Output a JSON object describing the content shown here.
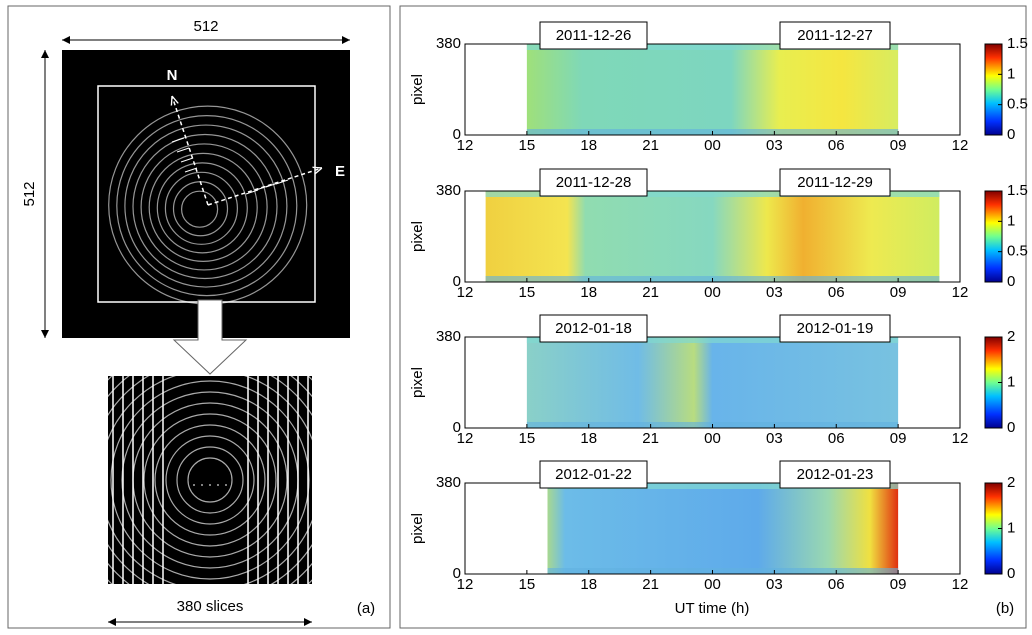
{
  "panel_a": {
    "width_label": "512",
    "height_label": "512",
    "north_label": "N",
    "east_label": "E",
    "slices_label": "380 slices",
    "panel_label": "(a)"
  },
  "panel_b": {
    "panel_label": "(b)",
    "x_label": "UT time (h)",
    "y_label": "pixel",
    "xlim": [
      12,
      36
    ],
    "xticks": [
      12,
      15,
      18,
      21,
      {
        "value": 24,
        "label": "00"
      },
      {
        "value": 27,
        "label": "03"
      },
      {
        "value": 30,
        "label": "06"
      },
      {
        "value": 33,
        "label": "09"
      },
      {
        "value": 36,
        "label": "12"
      }
    ],
    "ylim": [
      0,
      380
    ],
    "yticks": [
      0,
      380
    ],
    "plots": [
      {
        "dates": [
          "2011-12-26",
          "2011-12-27"
        ],
        "time_range": [
          15,
          33
        ],
        "clim": [
          0,
          1.5
        ],
        "cticks": [
          0,
          0.5,
          1,
          1.5
        ]
      },
      {
        "dates": [
          "2011-12-28",
          "2011-12-29"
        ],
        "time_range": [
          13,
          35
        ],
        "clim": [
          0,
          1.5
        ],
        "cticks": [
          0,
          0.5,
          1,
          1.5
        ]
      },
      {
        "dates": [
          "2012-01-18",
          "2012-01-19"
        ],
        "time_range": [
          15,
          33
        ],
        "clim": [
          0,
          2
        ],
        "cticks": [
          0,
          1,
          2
        ]
      },
      {
        "dates": [
          "2012-01-22",
          "2012-01-23"
        ],
        "time_range": [
          16,
          33
        ],
        "clim": [
          0,
          2
        ],
        "cticks": [
          0,
          1,
          2
        ]
      }
    ]
  }
}
